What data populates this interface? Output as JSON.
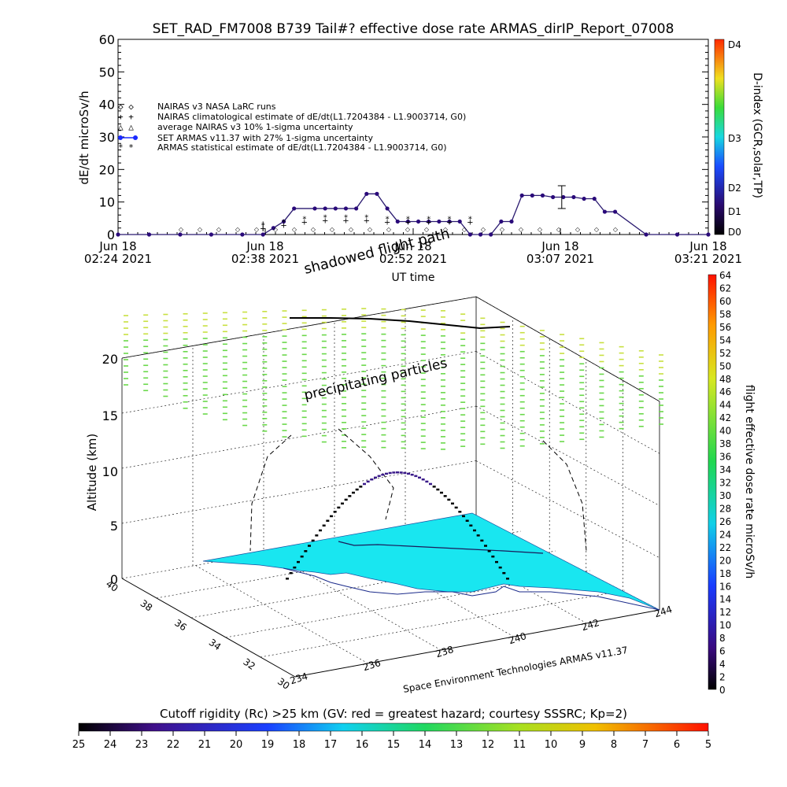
{
  "title": "SET_RAD_FM7008  B739 Tail#? effective dose rate ARMAS_dirIP_Report_07008",
  "top_chart": {
    "ylabel": "dE/dt microSv/h",
    "xlabel": "UT time",
    "y_ticks": [
      "0",
      "10",
      "20",
      "30",
      "40",
      "50",
      "60"
    ],
    "ylim": [
      0,
      60
    ],
    "x_ticks": [
      {
        "date": "Jun 18",
        "time": "02:24 2021"
      },
      {
        "date": "Jun 18",
        "time": "02:38 2021"
      },
      {
        "date": "Jun 18",
        "time": "02:52 2021"
      },
      {
        "date": "Jun 18",
        "time": "03:07 2021"
      },
      {
        "date": "Jun 18",
        "time": "03:21 2021"
      }
    ],
    "legend": [
      "NAIRAS v3 NASA LaRC runs",
      "NAIRAS climatological estimate of dE/dt(L1.7204384 - L1.9003714, G0)",
      "average NAIRAS v3 10% 1-sigma uncertainty",
      "SET ARMAS v11.37 with 27% 1-sigma uncertainty",
      "ARMAS statistical estimate of dE/dt(L1.7204384 - L1.9003714, G0)"
    ],
    "dindex_label": "D-index (GCR,solar,TP)",
    "dindex_ticks": [
      "D0",
      "D1",
      "D2",
      "D3",
      "D4"
    ]
  },
  "chart_data": [
    {
      "type": "line",
      "title": "SET_RAD_FM7008  B739 Tail#? effective dose rate ARMAS_dirIP_Report_07008",
      "xlabel": "UT time",
      "ylabel": "dE/dt microSv/h",
      "ylim": [
        0,
        60
      ],
      "x_unit": "minutes",
      "x_range": [
        "02:24",
        "03:21"
      ],
      "series": [
        {
          "name": "SET ARMAS v11.37 with 27% 1-sigma uncertainty",
          "x": [
            "02:24",
            "02:27",
            "02:30",
            "02:33",
            "02:36",
            "02:38",
            "02:39",
            "02:40",
            "02:41",
            "02:43",
            "02:44",
            "02:45",
            "02:46",
            "02:47",
            "02:48",
            "02:49",
            "02:50",
            "02:51",
            "02:52",
            "02:53",
            "02:54",
            "02:55",
            "02:56",
            "02:57",
            "02:58",
            "02:59",
            "03:00",
            "03:01",
            "03:02",
            "03:03",
            "03:04",
            "03:05",
            "03:06",
            "03:07",
            "03:08",
            "03:09",
            "03:10",
            "03:11",
            "03:12",
            "03:15",
            "03:18",
            "03:21"
          ],
          "values": [
            0,
            0,
            0,
            0,
            0,
            0,
            2,
            4,
            8,
            8,
            8,
            8,
            8,
            8,
            12.5,
            12.5,
            8,
            4,
            4,
            4,
            4,
            4,
            4,
            4,
            0,
            0,
            0,
            4,
            4,
            12,
            12,
            12,
            11.5,
            11.5,
            11.5,
            11,
            11,
            7,
            7,
            0,
            0,
            0
          ]
        },
        {
          "name": "ARMAS statistical estimate of dE/dt(L1.7204384 - L1.9003714, G0)",
          "x": [
            "02:38",
            "02:40",
            "02:42",
            "02:44",
            "02:46",
            "02:48",
            "02:50",
            "02:52",
            "02:54",
            "02:56",
            "02:58"
          ],
          "values": [
            3,
            4,
            5,
            5.5,
            5.5,
            5.5,
            5,
            5,
            5,
            5,
            5
          ]
        },
        {
          "name": "NAIRAS climatological estimate of dE/dt(L1.7204384 - L1.9003714, G0)",
          "x": [
            "02:38",
            "02:40",
            "02:42",
            "02:44",
            "02:46",
            "02:48",
            "02:50",
            "02:52",
            "02:54",
            "02:56",
            "02:58"
          ],
          "values": [
            2,
            3,
            4,
            4.5,
            4.5,
            4.5,
            4,
            4,
            4,
            4,
            4
          ]
        }
      ]
    },
    {
      "type": "scatter",
      "title": "",
      "xlabel": "",
      "ylabel": "Altitude (km)",
      "z_ticks": [
        "0",
        "5",
        "10",
        "15",
        "20"
      ],
      "lat_ticks": [
        "30",
        "32",
        "34",
        "36",
        "38",
        "40"
      ],
      "lon_ticks": [
        "234",
        "236",
        "238",
        "240",
        "242",
        "244"
      ],
      "annotations": [
        "shadowed flight path",
        "precipitating particles"
      ],
      "colorbar_label": "flight effective dose rate microSv/h",
      "colorbar_range": [
        0,
        64
      ]
    }
  ],
  "perspective": {
    "ylabel": "Altitude (km)",
    "z_ticks": [
      "0",
      "5",
      "10",
      "15",
      "20"
    ],
    "lat_ticks": [
      "30",
      "32",
      "34",
      "36",
      "38",
      "40"
    ],
    "lon_ticks": [
      "234",
      "236",
      "238",
      "240",
      "242",
      "244"
    ],
    "annotation_shadow": "shadowed flight path",
    "annotation_particles": "precipitating particles",
    "credit": "Space Environment Technologies ARMAS v11.37"
  },
  "right_colorbar": {
    "label": "flight effective dose rate microSv/h",
    "ticks": [
      "0",
      "2",
      "4",
      "6",
      "8",
      "10",
      "12",
      "14",
      "16",
      "18",
      "20",
      "22",
      "24",
      "26",
      "28",
      "30",
      "32",
      "34",
      "36",
      "38",
      "40",
      "42",
      "44",
      "46",
      "48",
      "50",
      "52",
      "54",
      "56",
      "58",
      "60",
      "62",
      "64"
    ]
  },
  "bottom_colorbar": {
    "title": "Cutoff rigidity (Rc) >25 km (GV: red = greatest hazard; courtesy SSSRC; Kp=2)",
    "ticks": [
      "25",
      "24",
      "23",
      "22",
      "21",
      "20",
      "19",
      "18",
      "17",
      "16",
      "15",
      "14",
      "13",
      "12",
      "11",
      "10",
      "9",
      "8",
      "7",
      "6",
      "5"
    ]
  },
  "colors": {
    "cutoff_fill": "#19e6f0",
    "particles": "#7dd84a",
    "flight_path": "#33106a"
  }
}
